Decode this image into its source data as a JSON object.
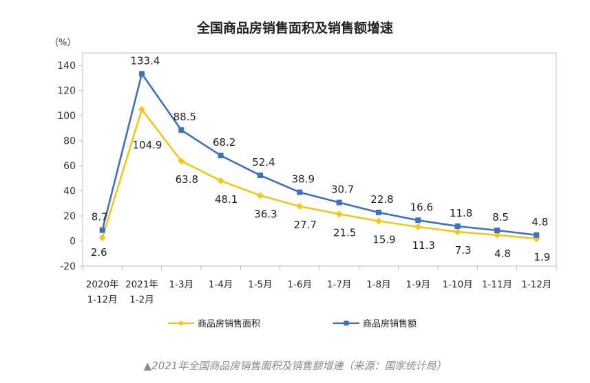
{
  "chart_data": {
    "type": "line",
    "title": "全国商品房销售面积及销售额增速",
    "ylabel": "（%）",
    "ylim": [
      -20,
      150
    ],
    "yticks": [
      "140",
      "120",
      "100",
      "80",
      "60",
      "40",
      "20",
      "0",
      "-20"
    ],
    "categories": [
      [
        "2020年",
        "1-12月"
      ],
      [
        "2021年",
        "1-2月"
      ],
      [
        "1-3月"
      ],
      [
        "1-4月"
      ],
      [
        "1-5月"
      ],
      [
        "1-6月"
      ],
      [
        "1-7月"
      ],
      [
        "1-8月"
      ],
      [
        "1-9月"
      ],
      [
        "1-10月"
      ],
      [
        "1-11月"
      ],
      [
        "1-12月"
      ]
    ],
    "series": [
      {
        "name": "商品房销售面积",
        "color": "#f5c518",
        "marker": "diamond",
        "values": [
          2.6,
          104.9,
          63.8,
          48.1,
          36.3,
          27.7,
          21.5,
          15.9,
          11.3,
          7.3,
          4.8,
          1.9
        ],
        "labels": [
          "2.6",
          "104.9",
          "63.8",
          "48.1",
          "36.3",
          "27.7",
          "21.5",
          "15.9",
          "11.3",
          "7.3",
          "4.8",
          "1.9"
        ]
      },
      {
        "name": "商品房销售额",
        "color": "#3d6fc4",
        "marker": "square",
        "values": [
          8.7,
          133.4,
          88.5,
          68.2,
          52.4,
          38.9,
          30.7,
          22.8,
          16.6,
          11.8,
          8.5,
          4.8
        ],
        "labels": [
          "8.7",
          "133.4",
          "88.5",
          "68.2",
          "52.4",
          "38.9",
          "30.7",
          "22.8",
          "16.6",
          "11.8",
          "8.5",
          "4.8"
        ]
      }
    ]
  },
  "caption": "▲2021年全国商品房销售面积及销售额增速（来源：国家统计局）"
}
